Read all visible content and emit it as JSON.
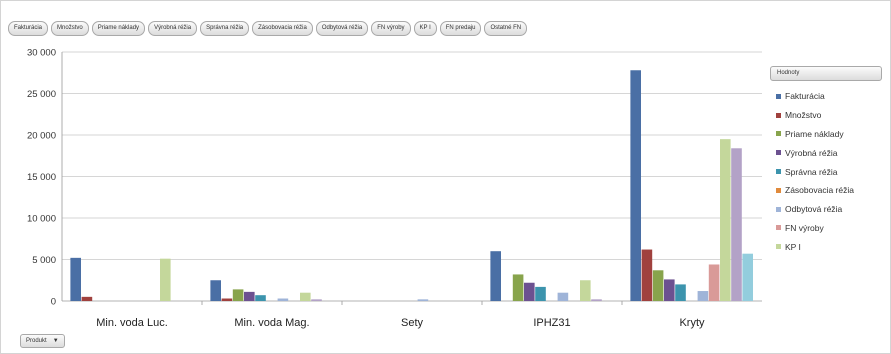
{
  "field_buttons": [
    "Fakturácia",
    "Množstvo",
    "Priame náklady",
    "Výrobná réžia",
    "Správna réžia",
    "Zásobovacia réžia",
    "Odbytová réžia",
    "FN výroby",
    "KP I",
    "FN predaju",
    "Ostatné FN"
  ],
  "legend_title": "Hodnoty",
  "product_filter": "Produkt",
  "chart_data": {
    "type": "bar",
    "categories": [
      "Min. voda Luc.",
      "Min. voda Mag.",
      "Sety",
      "IPHZ31",
      "Kryty"
    ],
    "y_ticks": [
      "30 000",
      "25 000",
      "20 000",
      "15 000",
      "10 000",
      "5 000",
      "0"
    ],
    "ylim": [
      0,
      30000
    ],
    "legend_position": "right",
    "grid": true,
    "series": [
      {
        "name": "Fakturácia",
        "color": "#4a6fa5",
        "values": [
          5200,
          2500,
          0,
          6000,
          27800
        ]
      },
      {
        "name": "Množstvo",
        "color": "#a0413e",
        "values": [
          500,
          300,
          0,
          0,
          6200
        ]
      },
      {
        "name": "Priame náklady",
        "color": "#88a44c",
        "values": [
          0,
          1400,
          0,
          3200,
          3700
        ]
      },
      {
        "name": "Výrobná réžia",
        "color": "#6c5190",
        "values": [
          0,
          1100,
          0,
          2200,
          2600
        ]
      },
      {
        "name": "Správna réžia",
        "color": "#3c94ad",
        "values": [
          0,
          700,
          0,
          1700,
          2000
        ]
      },
      {
        "name": "Zásobovacia réžia",
        "color": "#e08a3c",
        "values": [
          0,
          0,
          0,
          0,
          0
        ]
      },
      {
        "name": "Odbytová réžia",
        "color": "#9fb4d8",
        "values": [
          0,
          300,
          200,
          1000,
          1200
        ]
      },
      {
        "name": "FN výroby",
        "color": "#d99a98",
        "values": [
          0,
          0,
          0,
          0,
          4400
        ]
      },
      {
        "name": "KP I",
        "color": "#c4d79b",
        "values": [
          5100,
          1000,
          0,
          2500,
          19500
        ]
      },
      {
        "name": "FN predaju",
        "color": "#b3a2c7",
        "values": [
          0,
          200,
          0,
          200,
          18400
        ]
      },
      {
        "name": "Ostatné FN",
        "color": "#93cddd",
        "values": [
          0,
          0,
          0,
          0,
          5700
        ]
      }
    ]
  }
}
